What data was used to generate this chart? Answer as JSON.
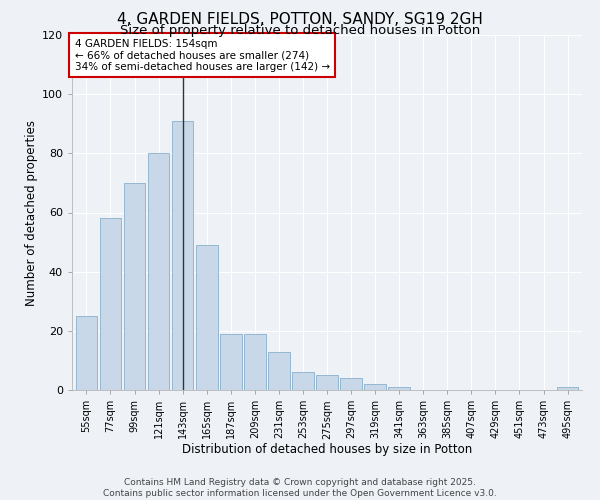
{
  "title1": "4, GARDEN FIELDS, POTTON, SANDY, SG19 2GH",
  "title2": "Size of property relative to detached houses in Potton",
  "xlabel": "Distribution of detached houses by size in Potton",
  "ylabel": "Number of detached properties",
  "categories": [
    "55sqm",
    "77sqm",
    "99sqm",
    "121sqm",
    "143sqm",
    "165sqm",
    "187sqm",
    "209sqm",
    "231sqm",
    "253sqm",
    "275sqm",
    "297sqm",
    "319sqm",
    "341sqm",
    "363sqm",
    "385sqm",
    "407sqm",
    "429sqm",
    "451sqm",
    "473sqm",
    "495sqm"
  ],
  "values": [
    25,
    58,
    70,
    80,
    91,
    49,
    19,
    19,
    13,
    6,
    5,
    4,
    2,
    1,
    0,
    0,
    0,
    0,
    0,
    0,
    1
  ],
  "bar_color": "#c8d8e8",
  "bar_edge_color": "#8ab0cc",
  "highlight_index": 4,
  "highlight_line_color": "#333333",
  "ylim": [
    0,
    120
  ],
  "yticks": [
    0,
    20,
    40,
    60,
    80,
    100,
    120
  ],
  "annotation_text": "4 GARDEN FIELDS: 154sqm\n← 66% of detached houses are smaller (274)\n34% of semi-detached houses are larger (142) →",
  "annotation_box_color": "#ffffff",
  "annotation_box_edge": "#cc0000",
  "footer_text": "Contains HM Land Registry data © Crown copyright and database right 2025.\nContains public sector information licensed under the Open Government Licence v3.0.",
  "bg_color": "#eef2f7",
  "grid_color": "#ffffff",
  "title1_fontsize": 11,
  "title2_fontsize": 9.5,
  "tick_fontsize": 7,
  "label_fontsize": 8.5,
  "annotation_fontsize": 7.5,
  "footer_fontsize": 6.5
}
